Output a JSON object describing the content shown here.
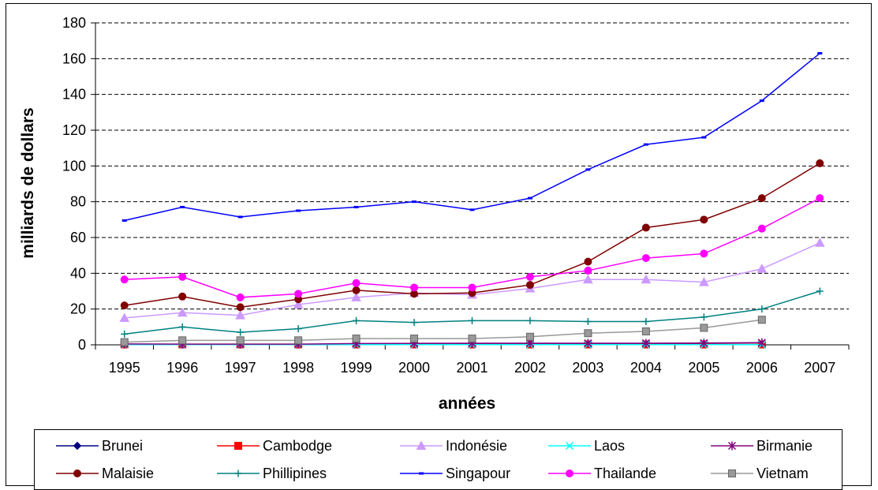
{
  "chart_data": {
    "type": "line",
    "title": "",
    "xlabel": "années",
    "ylabel": "milliards de dollars",
    "ylim": [
      0,
      180
    ],
    "yticks": [
      "0",
      "20",
      "40",
      "60",
      "80",
      "100",
      "120",
      "140",
      "160",
      "180"
    ],
    "x": [
      "1995",
      "1996",
      "1997",
      "1998",
      "1999",
      "2000",
      "2001",
      "2002",
      "2003",
      "2004",
      "2005",
      "2006",
      "2007"
    ],
    "grid": "horizontal dashed",
    "legend_position": "bottom",
    "series": [
      {
        "name": "Brunei",
        "color": "#000080",
        "marker": "diamond",
        "values": [
          0.3,
          0.3,
          0.3,
          0.3,
          0.3,
          0.3,
          0.3,
          0.3,
          0.3,
          0.3,
          0.3,
          0.3,
          null
        ]
      },
      {
        "name": "Cambodge",
        "color": "#ff0000",
        "marker": "square",
        "values": [
          0.2,
          0.2,
          0.2,
          0.2,
          0.2,
          0.2,
          0.2,
          0.2,
          0.2,
          0.2,
          0.2,
          0.2,
          null
        ]
      },
      {
        "name": "Indonésie",
        "color": "#cc99ff",
        "marker": "triangle",
        "values": [
          15,
          18,
          16.5,
          22.5,
          26.5,
          29,
          28,
          31.5,
          36.5,
          36.5,
          35,
          42.5,
          57
        ]
      },
      {
        "name": "Laos",
        "color": "#00ffff",
        "marker": "x",
        "values": [
          0.1,
          0.1,
          0.1,
          0.1,
          0.1,
          0.1,
          0.1,
          0.1,
          0.1,
          0.1,
          0.1,
          0.1,
          null
        ]
      },
      {
        "name": "Birmanie",
        "color": "#800080",
        "marker": "star",
        "values": [
          0.5,
          0.4,
          0.4,
          0.4,
          0.7,
          0.8,
          0.9,
          0.9,
          0.9,
          0.9,
          1,
          1.2,
          null
        ]
      },
      {
        "name": "Malaisie",
        "color": "#800000",
        "marker": "circle",
        "values": [
          22,
          27,
          21,
          25.5,
          30.5,
          28.5,
          29,
          33.5,
          46.5,
          65.5,
          70,
          82,
          101.5
        ]
      },
      {
        "name": "Phillipines",
        "color": "#008080",
        "marker": "plus",
        "values": [
          6,
          10,
          7,
          9,
          13.5,
          12.5,
          13.5,
          13.5,
          13,
          13,
          15.5,
          20,
          30
        ]
      },
      {
        "name": "Singapour",
        "color": "#0000ff",
        "marker": "dash",
        "values": [
          69.5,
          77,
          71.5,
          75,
          77,
          80,
          75.5,
          82,
          98,
          112,
          116,
          136.5,
          163
        ]
      },
      {
        "name": "Thailande",
        "color": "#ff00ff",
        "marker": "circle",
        "values": [
          36.5,
          38,
          26.5,
          28.5,
          34.5,
          32,
          32,
          38,
          41.5,
          48.5,
          51,
          65,
          82
        ]
      },
      {
        "name": "Vietnam",
        "color": "#999999",
        "marker": "square",
        "values": [
          1.5,
          2.5,
          2.5,
          2.5,
          3.5,
          3.5,
          3.5,
          4.5,
          6.5,
          7.5,
          9.5,
          14,
          null
        ]
      }
    ]
  }
}
